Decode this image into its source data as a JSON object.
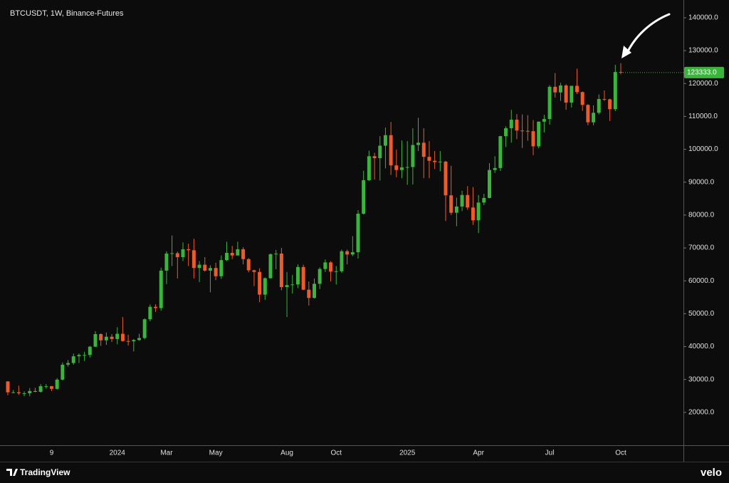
{
  "chart_data": {
    "type": "candlestick",
    "title": "BTCUSDT, 1W, Binance-Futures",
    "categories": [
      null,
      null,
      null,
      null,
      null,
      null,
      null,
      null,
      "9",
      null,
      null,
      null,
      null,
      null,
      null,
      null,
      null,
      null,
      null,
      null,
      "2024",
      null,
      null,
      null,
      null,
      null,
      null,
      null,
      null,
      "Mar",
      null,
      null,
      null,
      null,
      null,
      null,
      null,
      null,
      "May",
      null,
      null,
      null,
      null,
      null,
      null,
      null,
      null,
      null,
      null,
      null,
      null,
      "Aug",
      null,
      null,
      null,
      null,
      null,
      null,
      null,
      null,
      "Oct",
      null,
      null,
      null,
      null,
      null,
      null,
      null,
      null,
      null,
      null,
      null,
      null,
      "2025",
      null,
      null,
      null,
      null,
      null,
      null,
      null,
      null,
      null,
      null,
      null,
      null,
      "Apr",
      null,
      null,
      null,
      null,
      null,
      null,
      null,
      null,
      null,
      null,
      null,
      null,
      "Jul",
      null,
      null,
      null,
      null,
      null,
      null,
      null,
      null,
      null,
      null,
      null,
      null,
      "Oct"
    ],
    "open": [
      29400,
      26100,
      26100,
      25800,
      25800,
      26500,
      26250,
      27950,
      27950,
      27150,
      29950,
      34500,
      35000,
      37050,
      37450,
      37450,
      39970,
      43800,
      41900,
      43000,
      42300,
      43900,
      41700,
      41600,
      42000,
      42600,
      48300,
      52100,
      51700,
      63100,
      68300,
      68400,
      67200,
      69600,
      69300,
      63900,
      64900,
      63100,
      63900,
      61400,
      66300,
      68500,
      67700,
      69600,
      66600,
      63200,
      62700,
      55800,
      60800,
      68100,
      68300,
      58100,
      58700,
      58900,
      64200,
      57300,
      54800,
      59100,
      63600,
      65600,
      62800,
      62900,
      69000,
      68000,
      68700,
      80400,
      90600,
      97900,
      97300,
      101100,
      104300,
      95100,
      93700,
      94500,
      94600,
      101300,
      102000,
      97700,
      96500,
      96100,
      96250,
      86000,
      80700,
      82600,
      86100,
      82300,
      78400,
      83800,
      85200,
      93700,
      94300,
      104000,
      106400,
      109000,
      105700,
      105600,
      105500,
      100900,
      108400,
      109200,
      119000,
      117300,
      119400,
      114200,
      119300,
      117400,
      113500,
      108200,
      111100,
      115300,
      115200,
      112200,
      123500
    ],
    "high": [
      29500,
      26800,
      28100,
      26400,
      27400,
      27500,
      28600,
      28600,
      28000,
      30400,
      35200,
      35900,
      37900,
      37900,
      38400,
      40200,
      44700,
      44000,
      44300,
      43800,
      45900,
      49000,
      43600,
      42300,
      43900,
      48600,
      52800,
      52900,
      64000,
      69000,
      73800,
      68900,
      71700,
      71300,
      72800,
      66000,
      67200,
      64700,
      65500,
      67700,
      71900,
      70600,
      71900,
      70200,
      66900,
      63400,
      63800,
      61000,
      68300,
      69400,
      70000,
      62700,
      61800,
      65000,
      64900,
      59800,
      60700,
      64100,
      66500,
      66000,
      64500,
      69500,
      69500,
      73600,
      81500,
      93500,
      99600,
      98900,
      104000,
      106600,
      108300,
      99900,
      102700,
      102500,
      106400,
      109600,
      106400,
      102500,
      99500,
      99500,
      96500,
      95000,
      85300,
      87400,
      88800,
      88500,
      86100,
      86500,
      95800,
      97900,
      104100,
      107000,
      112000,
      110700,
      110600,
      110400,
      108900,
      108500,
      110500,
      119500,
      123200,
      120200,
      119800,
      119300,
      124500,
      117600,
      113700,
      113400,
      116700,
      117900,
      115400,
      125700,
      126200
    ],
    "low": [
      25200,
      25800,
      25300,
      24900,
      24900,
      26100,
      26000,
      27200,
      26500,
      26900,
      29700,
      33900,
      34500,
      35000,
      35600,
      36700,
      39900,
      40200,
      40500,
      41400,
      40700,
      41500,
      40300,
      38500,
      41800,
      42200,
      47700,
      50500,
      50900,
      59000,
      64500,
      60700,
      66000,
      64500,
      60700,
      59600,
      62800,
      56500,
      60200,
      60600,
      66000,
      66600,
      67800,
      65000,
      62600,
      58400,
      53500,
      54200,
      60700,
      63500,
      57100,
      49000,
      56100,
      57800,
      57200,
      52500,
      54600,
      57500,
      62700,
      59800,
      58900,
      62400,
      65000,
      67500,
      66800,
      80200,
      90400,
      90800,
      90500,
      94200,
      92200,
      91500,
      91200,
      89200,
      89300,
      99500,
      91200,
      91200,
      94000,
      93300,
      78200,
      80000,
      76600,
      81200,
      81600,
      77000,
      74500,
      83000,
      85100,
      92800,
      93400,
      100700,
      102000,
      103100,
      100400,
      102600,
      98200,
      100300,
      105100,
      107500,
      115700,
      114700,
      112000,
      112700,
      116800,
      111700,
      107300,
      107300,
      110600,
      114700,
      108600,
      111600,
      122800
    ],
    "close": [
      26100,
      26100,
      25800,
      25800,
      26500,
      26250,
      27950,
      27950,
      27150,
      29950,
      34500,
      35000,
      37050,
      37450,
      37450,
      39970,
      43800,
      41900,
      43000,
      42300,
      43900,
      41700,
      41600,
      42000,
      42600,
      48300,
      52100,
      51700,
      63100,
      68300,
      68400,
      67200,
      69600,
      69300,
      63900,
      64900,
      63100,
      63900,
      61400,
      66300,
      68500,
      67700,
      69600,
      66600,
      63200,
      62700,
      55800,
      60800,
      68100,
      68300,
      58100,
      58700,
      58900,
      64200,
      57300,
      54800,
      59100,
      63600,
      65600,
      62800,
      62900,
      69000,
      68000,
      68700,
      80400,
      90600,
      97900,
      97300,
      101100,
      104300,
      95100,
      93700,
      94500,
      94600,
      101300,
      102000,
      97700,
      96500,
      96100,
      96250,
      86000,
      80700,
      82600,
      86100,
      82300,
      78400,
      83800,
      85200,
      93700,
      94300,
      104000,
      106400,
      109000,
      105700,
      105600,
      105500,
      100900,
      108400,
      109200,
      119000,
      117300,
      119400,
      114200,
      119300,
      117400,
      113500,
      108200,
      111100,
      115300,
      115200,
      112200,
      123500,
      123333
    ],
    "up_color": "#38b53a",
    "down_color": "#f05a28",
    "ylim": [
      10000,
      145400
    ],
    "yticks": [
      {
        "value": 20000,
        "label": "20000.0"
      },
      {
        "value": 30000,
        "label": "30000.0"
      },
      {
        "value": 40000,
        "label": "40000.0"
      },
      {
        "value": 50000,
        "label": "50000.0"
      },
      {
        "value": 60000,
        "label": "60000.0"
      },
      {
        "value": 70000,
        "label": "70000.0"
      },
      {
        "value": 80000,
        "label": "80000.0"
      },
      {
        "value": 90000,
        "label": "90000.0"
      },
      {
        "value": 100000,
        "label": "100000.0"
      },
      {
        "value": 110000,
        "label": "110000.0"
      },
      {
        "value": 120000,
        "label": "120000.0"
      },
      {
        "value": 130000,
        "label": "130000.0"
      },
      {
        "value": 140000,
        "label": "140000.0"
      }
    ],
    "last_price": {
      "value": 123333,
      "label": "123333.0"
    },
    "last_price_color": "#38b53a",
    "grid": false
  },
  "footer": {
    "brand": "TradingView",
    "watermark": "velo"
  }
}
